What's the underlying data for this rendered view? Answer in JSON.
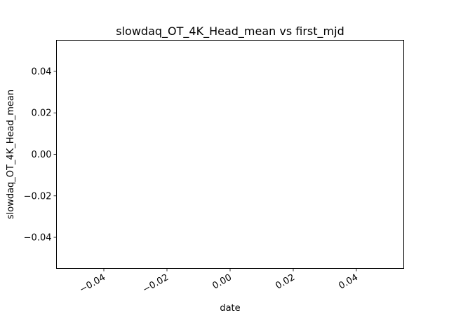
{
  "chart_data": {
    "type": "scatter",
    "title": "slowdaq_OT_4K_Head_mean vs first_mjd",
    "xlabel": "date",
    "ylabel": "slowdaq_OT_4K_Head_mean",
    "xlim": [
      -0.055,
      0.055
    ],
    "ylim": [
      -0.055,
      0.055
    ],
    "x_ticks": [
      -0.04,
      -0.02,
      0.0,
      0.02,
      0.04
    ],
    "x_tick_labels": [
      "−0.04",
      "−0.02",
      "0.00",
      "0.02",
      "0.04"
    ],
    "y_ticks": [
      -0.04,
      -0.02,
      0.0,
      0.02,
      0.04
    ],
    "y_tick_labels": [
      "−0.04",
      "−0.02",
      "0.00",
      "0.02",
      "0.04"
    ],
    "x_tick_label_rotation": "rotated 30 degrees",
    "grid": false,
    "legend": "none",
    "series": [
      {
        "x": [],
        "y": []
      }
    ]
  }
}
